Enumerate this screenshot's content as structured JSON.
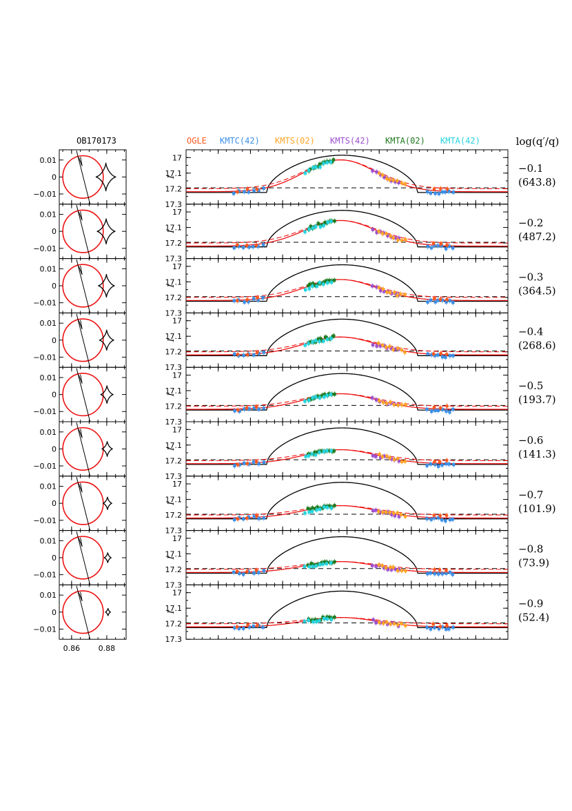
{
  "chart_data": {
    "type": "scatter",
    "event_label": "OB170173",
    "ylabel": "I",
    "column_header": "log(q′/q)",
    "legend": [
      {
        "name": "OGLE",
        "color": "#ff5a1e"
      },
      {
        "name": "KMTC(42)",
        "color": "#3a8ee6"
      },
      {
        "name": "KMTS(02)",
        "color": "#ffa526"
      },
      {
        "name": "KMTS(42)",
        "color": "#9b4fd0"
      },
      {
        "name": "KMTA(02)",
        "color": "#1f7a1f"
      },
      {
        "name": "KMTA(42)",
        "color": "#24d4e0"
      }
    ],
    "lightcurve_ylim": [
      17.3,
      16.95
    ],
    "lightcurve_yticks": [
      "17",
      "17.1",
      "17.2",
      "17.3"
    ],
    "caustic_xlim": [
      0.853,
      0.891
    ],
    "caustic_ylim": [
      -0.016,
      0.016
    ],
    "caustic_xticks": [
      "0.86",
      "0.88"
    ],
    "caustic_yticks": [
      "0.01",
      "0",
      "−0.01"
    ],
    "baseline_mag": 17.195,
    "rows": [
      {
        "log_ratio": "−0.1",
        "paren": "(643.8)",
        "black_peak": 16.985,
        "red_peak": 17.015,
        "data_peak": 17.0
      },
      {
        "log_ratio": "−0.2",
        "paren": "(487.2)",
        "black_peak": 16.99,
        "red_peak": 17.055,
        "data_peak": 17.05
      },
      {
        "log_ratio": "−0.3",
        "paren": "(364.5)",
        "black_peak": 16.99,
        "red_peak": 17.085,
        "data_peak": 17.08
      },
      {
        "log_ratio": "−0.4",
        "paren": "(268.6)",
        "black_peak": 16.99,
        "red_peak": 17.105,
        "data_peak": 17.1
      },
      {
        "log_ratio": "−0.5",
        "paren": "(193.7)",
        "black_peak": 16.99,
        "red_peak": 17.12,
        "data_peak": 17.115
      },
      {
        "log_ratio": "−0.6",
        "paren": "(141.3)",
        "black_peak": 16.99,
        "red_peak": 17.13,
        "data_peak": 17.125
      },
      {
        "log_ratio": "−0.7",
        "paren": "(101.9)",
        "black_peak": 16.99,
        "red_peak": 17.14,
        "data_peak": 17.135
      },
      {
        "log_ratio": "−0.8",
        "paren": "(73.9)",
        "black_peak": 16.99,
        "red_peak": 17.15,
        "data_peak": 17.145
      },
      {
        "log_ratio": "−0.9",
        "paren": "(52.4)",
        "black_peak": 16.99,
        "red_peak": 17.16,
        "data_peak": 17.155
      }
    ]
  }
}
